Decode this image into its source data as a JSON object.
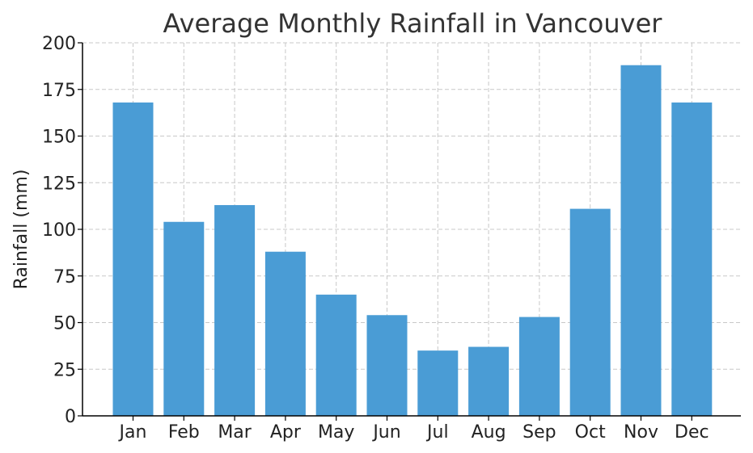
{
  "chart_data": {
    "type": "bar",
    "title": "Average Monthly Rainfall in Vancouver",
    "xlabel": "",
    "ylabel": "Rainfall (mm)",
    "categories": [
      "Jan",
      "Feb",
      "Mar",
      "Apr",
      "May",
      "Jun",
      "Jul",
      "Aug",
      "Sep",
      "Oct",
      "Nov",
      "Dec"
    ],
    "values": [
      168,
      104,
      113,
      88,
      65,
      54,
      35,
      37,
      53,
      111,
      188,
      168
    ],
    "ylim": [
      0,
      200
    ],
    "yticks": [
      0,
      25,
      50,
      75,
      100,
      125,
      150,
      175,
      200
    ],
    "grid": true,
    "bar_color": "#4a9cd5"
  }
}
